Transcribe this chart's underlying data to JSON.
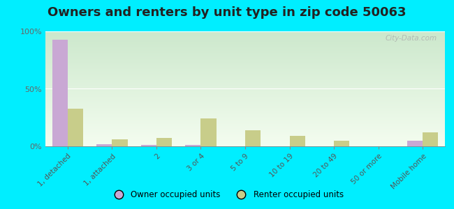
{
  "title": "Owners and renters by unit type in zip code 50063",
  "categories": [
    "1, detached",
    "1, attached",
    "2",
    "3 or 4",
    "5 to 9",
    "10 to 19",
    "20 to 49",
    "50 or more",
    "Mobile home"
  ],
  "owner_values": [
    93,
    2,
    1,
    1,
    0,
    0,
    0,
    0,
    5
  ],
  "renter_values": [
    33,
    6,
    7,
    24,
    14,
    9,
    5,
    0,
    12
  ],
  "owner_color": "#c9a8d4",
  "renter_color": "#c8cd8a",
  "grad_top": "#cce8cc",
  "grad_bottom": "#f4fdf0",
  "bg_outer": "#00eeff",
  "ylim": [
    0,
    100
  ],
  "yticks": [
    0,
    50,
    100
  ],
  "ytick_labels": [
    "0%",
    "50%",
    "100%"
  ],
  "bar_width": 0.35,
  "title_fontsize": 13,
  "legend_labels": [
    "Owner occupied units",
    "Renter occupied units"
  ],
  "watermark": "City-Data.com"
}
